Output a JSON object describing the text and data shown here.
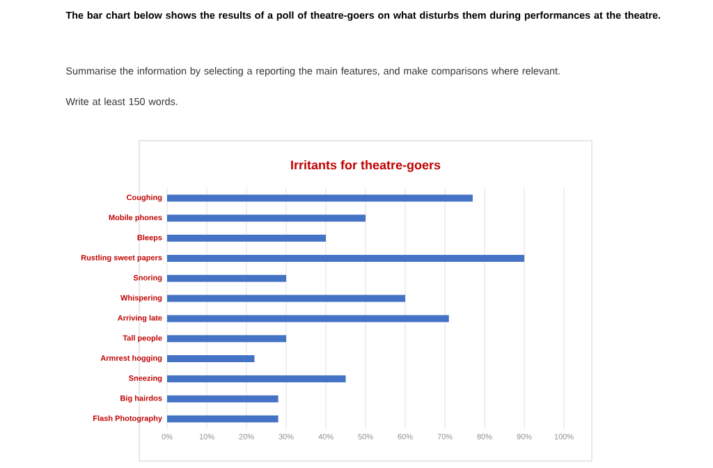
{
  "chart_data": {
    "type": "bar",
    "orientation": "horizontal",
    "title": "Irritants for theatre-goers",
    "annotations": [
      "The bar chart below shows the results of a poll of theatre-goers on what disturbs them during performances at the theatre.",
      "Summarise the information by selecting a reporting the main features, and make comparisons where relevant.",
      "Write at least 150 words."
    ],
    "categories": [
      "Coughing",
      "Mobile phones",
      "Bleeps",
      "Rustling sweet papers",
      "Snoring",
      "Whispering",
      "Arriving late",
      "Tall people",
      "Armrest hogging",
      "Sneezing",
      "Big hairdos",
      "Flash Photography"
    ],
    "values": [
      77,
      50,
      40,
      90,
      30,
      60,
      71,
      30,
      22,
      45,
      28,
      28
    ],
    "color": "#4472c4",
    "xlim": [
      0,
      100
    ],
    "xticks": [
      {
        "value": 0,
        "label": "0%"
      },
      {
        "value": 10,
        "label": "10%"
      },
      {
        "value": 20,
        "label": "20%"
      },
      {
        "value": 30,
        "label": "30%"
      },
      {
        "value": 40,
        "label": "40%"
      },
      {
        "value": 50,
        "label": "50%"
      },
      {
        "value": 60,
        "label": "60%"
      },
      {
        "value": 70,
        "label": "70%"
      },
      {
        "value": 80,
        "label": "80%"
      },
      {
        "value": 90,
        "label": "90%"
      },
      {
        "value": 100,
        "label": "100%"
      }
    ],
    "grid": "x"
  }
}
